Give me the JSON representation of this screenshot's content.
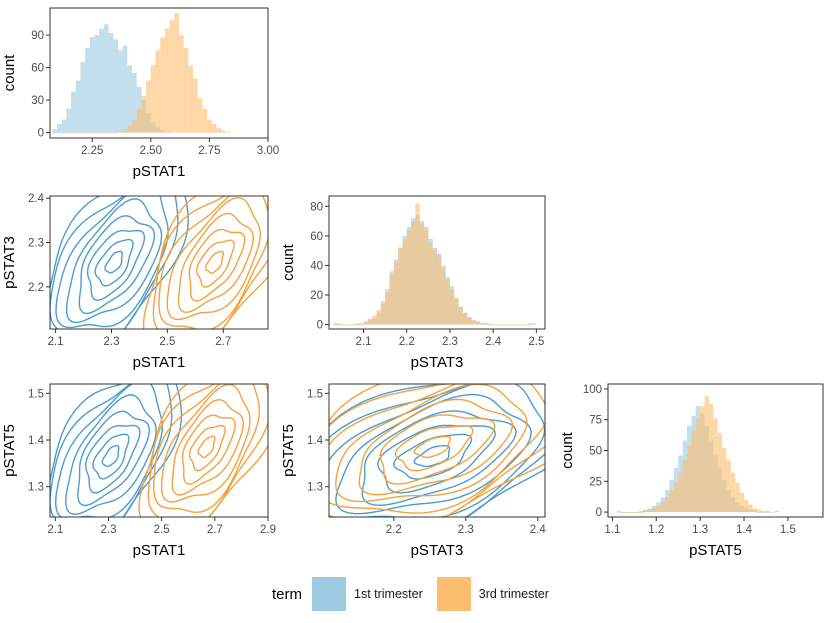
{
  "chart_data": {
    "type": "pairs",
    "variables": [
      "pSTAT1",
      "pSTAT3",
      "pSTAT5"
    ],
    "legend": {
      "title": "term",
      "items": [
        {
          "label": "1st trimester",
          "color": "#9ecae1"
        },
        {
          "label": "3rd trimester",
          "color": "#fdbf6f"
        }
      ]
    },
    "colors": {
      "first_fill": "#9ecae1",
      "third_fill": "#fdbf6f",
      "first_line": "#4c9cd0",
      "third_line": "#f5a13a"
    },
    "stats": {
      "pSTAT1": {
        "first": {
          "mean": 2.31,
          "sd": 0.075
        },
        "third": {
          "mean": 2.67,
          "sd": 0.075
        }
      },
      "pSTAT3": {
        "first": {
          "mean": 2.255,
          "sd": 0.06
        },
        "third": {
          "mean": 2.255,
          "sd": 0.06
        }
      },
      "pSTAT5": {
        "first": {
          "mean": 1.365,
          "sd": 0.055
        },
        "third": {
          "mean": 1.385,
          "sd": 0.055
        }
      }
    },
    "panels": [
      {
        "id": "hist-pSTAT1",
        "kind": "hist",
        "var": "pSTAT1",
        "xlabel": "pSTAT1",
        "ylabel": "count",
        "xlim": [
          2.07,
          3.0
        ],
        "ylim": [
          -5,
          115
        ],
        "xticks": [
          2.25,
          2.5,
          2.75,
          3.0
        ],
        "xtick_labels": [
          "2.25",
          "2.50",
          "2.75",
          "3.00"
        ],
        "yticks": [
          0,
          30,
          60,
          90
        ],
        "ytick_labels": [
          "0",
          "30",
          "60",
          "90"
        ],
        "bins": {
          "start": 2.08,
          "width": 0.02,
          "first": [
            3,
            8,
            12,
            22,
            38,
            48,
            65,
            78,
            88,
            90,
            96,
            100,
            92,
            86,
            76,
            80,
            62,
            55,
            42,
            30,
            18,
            10,
            5,
            2,
            1
          ],
          "third": [
            0,
            0,
            0,
            0,
            0,
            0,
            0,
            0,
            0,
            0,
            0,
            0,
            0,
            0,
            1,
            3,
            6,
            12,
            22,
            34,
            48,
            62,
            76,
            88,
            96,
            104,
            110,
            90,
            78,
            62,
            50,
            32,
            22,
            12,
            8,
            4,
            2,
            1
          ]
        }
      },
      {
        "id": "hist-pSTAT3",
        "kind": "hist",
        "var": "pSTAT3",
        "xlabel": "pSTAT3",
        "ylabel": "count",
        "xlim": [
          2.02,
          2.52
        ],
        "ylim": [
          -3,
          87
        ],
        "xticks": [
          2.1,
          2.2,
          2.3,
          2.4,
          2.5
        ],
        "xtick_labels": [
          "2.1",
          "2.2",
          "2.3",
          "2.4",
          "2.5"
        ],
        "yticks": [
          0,
          20,
          40,
          60,
          80
        ],
        "ytick_labels": [
          "0",
          "20",
          "40",
          "60",
          "80"
        ],
        "bins": {
          "start": 2.03,
          "width": 0.01,
          "first": [
            1,
            0,
            0,
            0,
            0,
            1,
            0,
            2,
            3,
            4,
            8,
            14,
            22,
            36,
            44,
            52,
            60,
            66,
            72,
            74,
            70,
            66,
            58,
            52,
            48,
            40,
            32,
            26,
            18,
            12,
            8,
            5,
            3,
            2,
            1,
            1,
            0,
            0,
            0,
            0,
            0,
            0,
            0,
            0,
            0,
            0,
            1
          ],
          "third": [
            0,
            1,
            0,
            0,
            0,
            0,
            1,
            2,
            4,
            6,
            10,
            16,
            24,
            34,
            42,
            52,
            58,
            64,
            70,
            82,
            68,
            64,
            56,
            50,
            46,
            38,
            30,
            24,
            18,
            12,
            8,
            5,
            3,
            2,
            1,
            1,
            0,
            0,
            0,
            0,
            0,
            0,
            0,
            0,
            0,
            1
          ]
        }
      },
      {
        "id": "hist-pSTAT5",
        "kind": "hist",
        "var": "pSTAT5",
        "xlabel": "pSTAT5",
        "ylabel": "count",
        "xlim": [
          1.09,
          1.58
        ],
        "ylim": [
          -4,
          104
        ],
        "xticks": [
          1.1,
          1.2,
          1.3,
          1.4,
          1.5
        ],
        "xtick_labels": [
          "1.1",
          "1.2",
          "1.3",
          "1.4",
          "1.5"
        ],
        "yticks": [
          0,
          25,
          50,
          75,
          100
        ],
        "ytick_labels": [
          "0",
          "25",
          "50",
          "75",
          "100"
        ],
        "bins": {
          "start": 1.11,
          "width": 0.01,
          "first": [
            1,
            0,
            0,
            0,
            0,
            1,
            2,
            3,
            5,
            8,
            12,
            18,
            26,
            36,
            46,
            58,
            70,
            78,
            86,
            80,
            70,
            58,
            46,
            36,
            26,
            18,
            12,
            8,
            5,
            3,
            2,
            1,
            0,
            0,
            0,
            0,
            1
          ],
          "third": [
            0,
            0,
            0,
            0,
            0,
            0,
            1,
            2,
            3,
            5,
            8,
            12,
            18,
            24,
            32,
            42,
            54,
            66,
            76,
            86,
            94,
            88,
            76,
            64,
            52,
            42,
            32,
            24,
            16,
            10,
            6,
            3,
            2,
            1,
            1
          ]
        }
      },
      {
        "id": "density-pSTAT1-pSTAT3",
        "kind": "density",
        "xvar": "pSTAT1",
        "yvar": "pSTAT3",
        "xlabel": "pSTAT1",
        "ylabel": "pSTAT3",
        "xlim": [
          2.08,
          2.86
        ],
        "ylim": [
          2.105,
          2.405
        ],
        "rho": 0.55,
        "xticks": [
          2.1,
          2.3,
          2.5,
          2.7
        ],
        "xtick_labels": [
          "2.1",
          "2.3",
          "2.5",
          "2.7"
        ],
        "yticks": [
          2.2,
          2.3,
          2.4
        ],
        "ytick_labels": [
          "2.2",
          "2.3",
          "2.4"
        ]
      },
      {
        "id": "density-pSTAT1-pSTAT5",
        "kind": "density",
        "xvar": "pSTAT1",
        "yvar": "pSTAT5",
        "xlabel": "pSTAT1",
        "ylabel": "pSTAT5",
        "xlim": [
          2.08,
          2.9
        ],
        "ylim": [
          1.235,
          1.52
        ],
        "rho": 0.55,
        "xticks": [
          2.1,
          2.3,
          2.5,
          2.7,
          2.9
        ],
        "xtick_labels": [
          "2.1",
          "2.3",
          "2.5",
          "2.7",
          "2.9"
        ],
        "yticks": [
          1.3,
          1.4,
          1.5
        ],
        "ytick_labels": [
          "1.3",
          "1.4",
          "1.5"
        ]
      },
      {
        "id": "density-pSTAT3-pSTAT5",
        "kind": "density",
        "xvar": "pSTAT3",
        "yvar": "pSTAT5",
        "xlabel": "pSTAT3",
        "ylabel": "pSTAT5",
        "xlim": [
          2.11,
          2.41
        ],
        "ylim": [
          1.235,
          1.52
        ],
        "rho": 0.5,
        "xticks": [
          2.2,
          2.3,
          2.4
        ],
        "xtick_labels": [
          "2.2",
          "2.3",
          "2.4"
        ],
        "yticks": [
          1.3,
          1.4,
          1.5
        ],
        "ytick_labels": [
          "1.3",
          "1.4",
          "1.5"
        ]
      }
    ]
  }
}
